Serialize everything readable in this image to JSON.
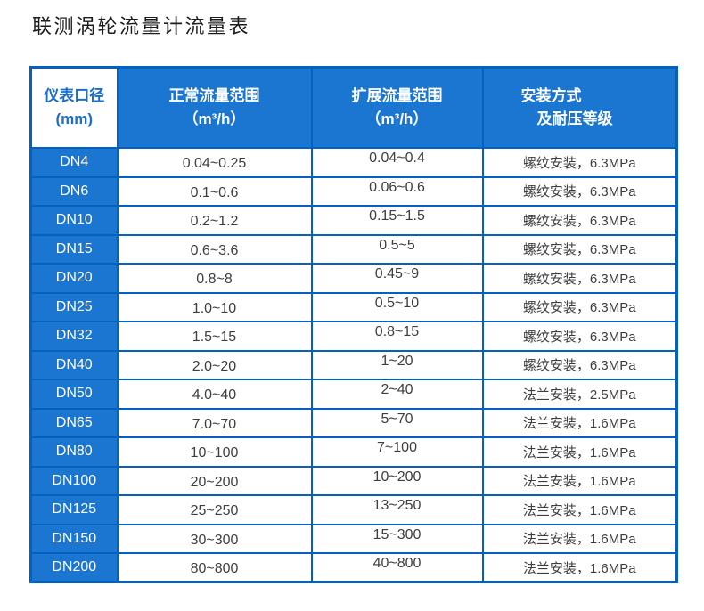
{
  "title": "联测涡轮流量计流量表",
  "colors": {
    "header_bg": "#1b76d2",
    "border": "#0561c1",
    "corner_header_text": "#1a6ecb",
    "cell_text": "#3e3e3e"
  },
  "table": {
    "headers": [
      {
        "line1": "仪表口径",
        "line2": "(mm)"
      },
      {
        "line1": "正常流量范围",
        "line2": "（m³/h）"
      },
      {
        "line1": "扩展流量范围",
        "line2": "（m³/h）"
      },
      {
        "line1": "安装方式",
        "line2": "及耐压等级"
      }
    ],
    "rows": [
      [
        "DN4",
        "0.04~0.25",
        "0.04~0.4",
        "螺纹安装，6.3MPa"
      ],
      [
        "DN6",
        "0.1~0.6",
        "0.06~0.6",
        "螺纹安装，6.3MPa"
      ],
      [
        "DN10",
        "0.2~1.2",
        "0.15~1.5",
        "螺纹安装，6.3MPa"
      ],
      [
        "DN15",
        "0.6~3.6",
        "0.5~5",
        "螺纹安装，6.3MPa"
      ],
      [
        "DN20",
        "0.8~8",
        "0.45~9",
        "螺纹安装，6.3MPa"
      ],
      [
        "DN25",
        "1.0~10",
        "0.5~10",
        "螺纹安装，6.3MPa"
      ],
      [
        "DN32",
        "1.5~15",
        "0.8~15",
        "螺纹安装，6.3MPa"
      ],
      [
        "DN40",
        "2.0~20",
        "1~20",
        "螺纹安装，6.3MPa"
      ],
      [
        "DN50",
        "4.0~40",
        "2~40",
        "法兰安装，2.5MPa"
      ],
      [
        "DN65",
        "7.0~70",
        "5~70",
        "法兰安装，1.6MPa"
      ],
      [
        "DN80",
        "10~100",
        "7~100",
        "法兰安装，1.6MPa"
      ],
      [
        "DN100",
        "20~200",
        "10~200",
        "法兰安装，1.6MPa"
      ],
      [
        "DN125",
        "25~250",
        "13~250",
        "法兰安装，1.6MPa"
      ],
      [
        "DN150",
        "30~300",
        "15~300",
        "法兰安装，1.6MPa"
      ],
      [
        "DN200",
        "80~800",
        "40~800",
        "法兰安装，1.6MPa"
      ]
    ]
  }
}
